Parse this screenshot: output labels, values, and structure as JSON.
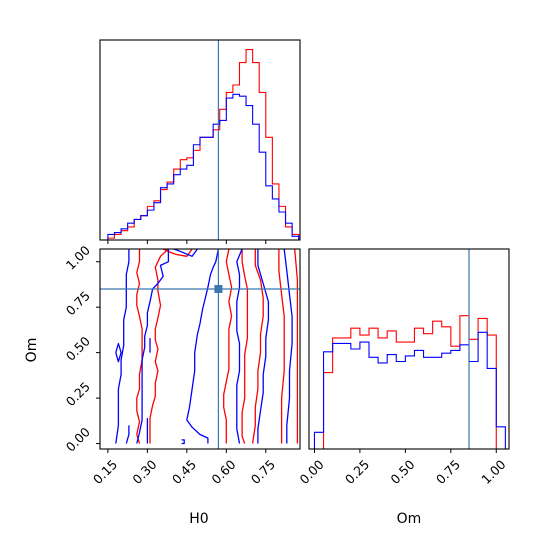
{
  "colors": {
    "series_a": "#ff0000",
    "series_b": "#0000ff",
    "truth": "#3b76af",
    "frame": "#000000"
  },
  "chart_data": {
    "type": "corner",
    "parameters": [
      "H0",
      "Om"
    ],
    "truths": {
      "H0": 0.57,
      "Om": 0.85
    },
    "axes": {
      "H0": {
        "xlim": [
          0.12,
          0.88
        ],
        "ticks": [
          0.15,
          0.3,
          0.45,
          0.6,
          0.75
        ],
        "tick_labels": [
          "0.15",
          "0.30",
          "0.45",
          "0.60",
          "0.75"
        ]
      },
      "Om": {
        "xlim": [
          -0.03,
          1.07
        ],
        "ticks": [
          0.0,
          0.25,
          0.5,
          0.75,
          1.0
        ],
        "tick_labels": [
          "0.00",
          "0.25",
          "0.50",
          "0.75",
          "1.00"
        ]
      }
    },
    "xlabel_bottom_left": "H0",
    "ylabel_bottom_left": "Om",
    "xlabel_bottom_right": "Om",
    "hist_H0": {
      "bin_edges": [
        0.15,
        0.175,
        0.2,
        0.225,
        0.25,
        0.275,
        0.3,
        0.325,
        0.35,
        0.375,
        0.4,
        0.425,
        0.45,
        0.475,
        0.5,
        0.525,
        0.55,
        0.575,
        0.6,
        0.625,
        0.65,
        0.675,
        0.7,
        0.725,
        0.75,
        0.775,
        0.8,
        0.825,
        0.85,
        0.875
      ],
      "series": [
        {
          "color_key": "series_a",
          "values": [
            1,
            3,
            5,
            7,
            11,
            13,
            18,
            21,
            27,
            31,
            38,
            43,
            44,
            48,
            55,
            55,
            59,
            70,
            79,
            83,
            95,
            102,
            95,
            79,
            55,
            30,
            18,
            7,
            3
          ]
        },
        {
          "color_key": "series_b",
          "values": [
            3,
            4,
            6,
            9,
            11,
            13,
            16,
            20,
            28,
            30,
            35,
            38,
            40,
            51,
            55,
            55,
            62,
            64,
            76,
            78,
            77,
            72,
            62,
            47,
            29,
            22,
            15,
            9,
            2
          ]
        }
      ]
    },
    "hist_Om": {
      "bin_edges": [
        0.0,
        0.05,
        0.1,
        0.15,
        0.2,
        0.25,
        0.3,
        0.35,
        0.4,
        0.45,
        0.5,
        0.55,
        0.6,
        0.65,
        0.7,
        0.75,
        0.8,
        0.85,
        0.9,
        0.95,
        1.0,
        1.05
      ],
      "series": [
        {
          "color_key": "series_a",
          "values": [
            0,
            55,
            80,
            80,
            87,
            82,
            87,
            80,
            85,
            77,
            77,
            87,
            83,
            92,
            88,
            74,
            96,
            79,
            94,
            82,
            0
          ]
        },
        {
          "color_key": "series_b",
          "values": [
            12,
            70,
            76,
            76,
            72,
            77,
            66,
            62,
            68,
            63,
            67,
            71,
            66,
            66,
            69,
            71,
            75,
            63,
            84,
            58,
            16
          ]
        }
      ]
    },
    "contours_H0_Om": [
      {
        "color_key": "series_a",
        "paths": [
          [
            [
              0.27,
              0.0
            ],
            [
              0.26,
              0.05
            ],
            [
              0.27,
              0.12
            ],
            [
              0.26,
              0.18
            ],
            [
              0.26,
              0.25
            ],
            [
              0.27,
              0.3
            ],
            [
              0.27,
              0.38
            ],
            [
              0.28,
              0.46
            ],
            [
              0.28,
              0.55
            ],
            [
              0.28,
              0.63
            ],
            [
              0.27,
              0.7
            ],
            [
              0.26,
              0.76
            ],
            [
              0.26,
              0.82
            ],
            [
              0.27,
              0.88
            ],
            [
              0.26,
              0.94
            ],
            [
              0.27,
              1.0
            ],
            [
              0.27,
              1.07
            ]
          ],
          [
            [
              0.38,
              1.07
            ],
            [
              0.35,
              1.03
            ],
            [
              0.33,
              0.97
            ],
            [
              0.34,
              0.9
            ],
            [
              0.34,
              0.84
            ],
            [
              0.35,
              0.76
            ],
            [
              0.34,
              0.69
            ],
            [
              0.33,
              0.63
            ],
            [
              0.33,
              0.57
            ],
            [
              0.34,
              0.52
            ],
            [
              0.33,
              0.45
            ],
            [
              0.34,
              0.4
            ],
            [
              0.33,
              0.33
            ],
            [
              0.33,
              0.26
            ],
            [
              0.32,
              0.21
            ],
            [
              0.31,
              0.14
            ],
            [
              0.31,
              0.07
            ],
            [
              0.31,
              0.0
            ]
          ],
          [
            [
              0.36,
              1.07
            ],
            [
              0.39,
              1.05
            ],
            [
              0.41,
              1.04
            ],
            [
              0.45,
              1.03
            ],
            [
              0.47,
              1.07
            ]
          ],
          [
            [
              0.61,
              1.07
            ],
            [
              0.6,
              1.0
            ],
            [
              0.61,
              0.93
            ],
            [
              0.62,
              0.86
            ],
            [
              0.61,
              0.78
            ],
            [
              0.62,
              0.7
            ],
            [
              0.61,
              0.63
            ],
            [
              0.61,
              0.56
            ],
            [
              0.61,
              0.48
            ],
            [
              0.61,
              0.41
            ],
            [
              0.6,
              0.34
            ],
            [
              0.59,
              0.27
            ],
            [
              0.59,
              0.2
            ],
            [
              0.6,
              0.13
            ],
            [
              0.6,
              0.06
            ],
            [
              0.6,
              0.0
            ]
          ],
          [
            [
              0.66,
              1.07
            ],
            [
              0.66,
              1.0
            ],
            [
              0.67,
              0.92
            ],
            [
              0.68,
              0.85
            ],
            [
              0.68,
              0.76
            ],
            [
              0.68,
              0.66
            ],
            [
              0.68,
              0.58
            ],
            [
              0.67,
              0.49
            ],
            [
              0.67,
              0.4
            ],
            [
              0.67,
              0.33
            ],
            [
              0.67,
              0.25
            ],
            [
              0.66,
              0.17
            ],
            [
              0.66,
              0.1
            ],
            [
              0.66,
              0.04
            ],
            [
              0.67,
              0.0
            ]
          ],
          [
            [
              0.71,
              1.07
            ],
            [
              0.71,
              0.98
            ],
            [
              0.73,
              0.9
            ],
            [
              0.74,
              0.8
            ],
            [
              0.74,
              0.7
            ],
            [
              0.73,
              0.6
            ],
            [
              0.73,
              0.5
            ],
            [
              0.72,
              0.4
            ],
            [
              0.72,
              0.3
            ],
            [
              0.71,
              0.2
            ],
            [
              0.71,
              0.1
            ],
            [
              0.7,
              0.0
            ]
          ],
          [
            [
              0.8,
              1.07
            ],
            [
              0.8,
              0.95
            ],
            [
              0.81,
              0.82
            ],
            [
              0.82,
              0.7
            ],
            [
              0.82,
              0.55
            ],
            [
              0.82,
              0.4
            ],
            [
              0.81,
              0.25
            ],
            [
              0.81,
              0.1
            ],
            [
              0.81,
              0.0
            ]
          ],
          [
            [
              0.86,
              1.07
            ],
            [
              0.87,
              0.9
            ],
            [
              0.87,
              0.7
            ],
            [
              0.87,
              0.5
            ],
            [
              0.87,
              0.3
            ],
            [
              0.87,
              0.1
            ],
            [
              0.87,
              0.0
            ]
          ]
        ]
      },
      {
        "color_key": "series_b",
        "paths": [
          [
            [
              0.18,
              0.0
            ],
            [
              0.19,
              0.1
            ],
            [
              0.19,
              0.2
            ],
            [
              0.19,
              0.3
            ],
            [
              0.2,
              0.38
            ],
            [
              0.2,
              0.46
            ],
            [
              0.21,
              0.54
            ],
            [
              0.21,
              0.62
            ],
            [
              0.21,
              0.68
            ],
            [
              0.22,
              0.75
            ],
            [
              0.22,
              0.82
            ],
            [
              0.22,
              0.88
            ],
            [
              0.22,
              0.93
            ],
            [
              0.23,
              1.0
            ],
            [
              0.23,
              1.07
            ]
          ],
          [
            [
              0.38,
              1.07
            ],
            [
              0.38,
              1.0
            ],
            [
              0.35,
              0.98
            ],
            [
              0.36,
              0.92
            ],
            [
              0.34,
              0.88
            ],
            [
              0.32,
              0.85
            ],
            [
              0.31,
              0.78
            ],
            [
              0.3,
              0.72
            ],
            [
              0.3,
              0.65
            ],
            [
              0.29,
              0.59
            ],
            [
              0.29,
              0.53
            ],
            [
              0.28,
              0.46
            ],
            [
              0.28,
              0.4
            ],
            [
              0.28,
              0.33
            ],
            [
              0.28,
              0.26
            ],
            [
              0.28,
              0.2
            ],
            [
              0.28,
              0.13
            ],
            [
              0.27,
              0.06
            ],
            [
              0.26,
              0.0
            ]
          ],
          [
            [
              0.4,
              1.07
            ],
            [
              0.42,
              1.06
            ],
            [
              0.47,
              1.03
            ],
            [
              0.49,
              1.07
            ]
          ],
          [
            [
              0.22,
              0.0
            ],
            [
              0.23,
              0.05
            ],
            [
              0.23,
              0.1
            ]
          ],
          [
            [
              0.18,
              0.5
            ],
            [
              0.19,
              0.55
            ],
            [
              0.2,
              0.5
            ],
            [
              0.19,
              0.45
            ],
            [
              0.18,
              0.5
            ]
          ],
          [
            [
              0.3,
              0.0
            ],
            [
              0.3,
              0.07
            ],
            [
              0.3,
              0.14
            ]
          ],
          [
            [
              0.31,
              0.5
            ],
            [
              0.31,
              0.58
            ]
          ],
          [
            [
              0.53,
              0.0
            ],
            [
              0.53,
              0.03
            ],
            [
              0.5,
              0.05
            ],
            [
              0.47,
              0.09
            ],
            [
              0.45,
              0.13
            ],
            [
              0.46,
              0.2
            ],
            [
              0.47,
              0.3
            ],
            [
              0.48,
              0.4
            ],
            [
              0.48,
              0.5
            ],
            [
              0.49,
              0.6
            ],
            [
              0.5,
              0.66
            ],
            [
              0.51,
              0.74
            ],
            [
              0.52,
              0.8
            ],
            [
              0.53,
              0.86
            ],
            [
              0.54,
              0.93
            ],
            [
              0.55,
              0.97
            ],
            [
              0.56,
              1.0
            ],
            [
              0.57,
              1.07
            ]
          ],
          [
            [
              0.66,
              1.07
            ],
            [
              0.64,
              1.0
            ],
            [
              0.65,
              0.93
            ],
            [
              0.65,
              0.86
            ],
            [
              0.64,
              0.78
            ],
            [
              0.64,
              0.7
            ],
            [
              0.64,
              0.62
            ],
            [
              0.65,
              0.55
            ],
            [
              0.65,
              0.48
            ],
            [
              0.65,
              0.4
            ],
            [
              0.64,
              0.32
            ],
            [
              0.64,
              0.24
            ],
            [
              0.64,
              0.16
            ],
            [
              0.64,
              0.08
            ],
            [
              0.65,
              0.0
            ]
          ],
          [
            [
              0.72,
              1.07
            ],
            [
              0.72,
              0.98
            ],
            [
              0.74,
              0.88
            ],
            [
              0.76,
              0.78
            ],
            [
              0.76,
              0.68
            ],
            [
              0.75,
              0.58
            ],
            [
              0.75,
              0.48
            ],
            [
              0.74,
              0.38
            ],
            [
              0.74,
              0.28
            ],
            [
              0.73,
              0.18
            ],
            [
              0.72,
              0.08
            ],
            [
              0.72,
              0.0
            ]
          ],
          [
            [
              0.82,
              1.07
            ],
            [
              0.83,
              0.95
            ],
            [
              0.84,
              0.82
            ],
            [
              0.85,
              0.7
            ],
            [
              0.85,
              0.55
            ],
            [
              0.84,
              0.4
            ],
            [
              0.84,
              0.25
            ],
            [
              0.83,
              0.1
            ],
            [
              0.83,
              0.0
            ]
          ],
          [
            [
              0.43,
              0.0
            ],
            [
              0.44,
              0.0
            ],
            [
              0.44,
              0.02
            ],
            [
              0.43,
              0.02
            ]
          ]
        ]
      }
    ]
  }
}
